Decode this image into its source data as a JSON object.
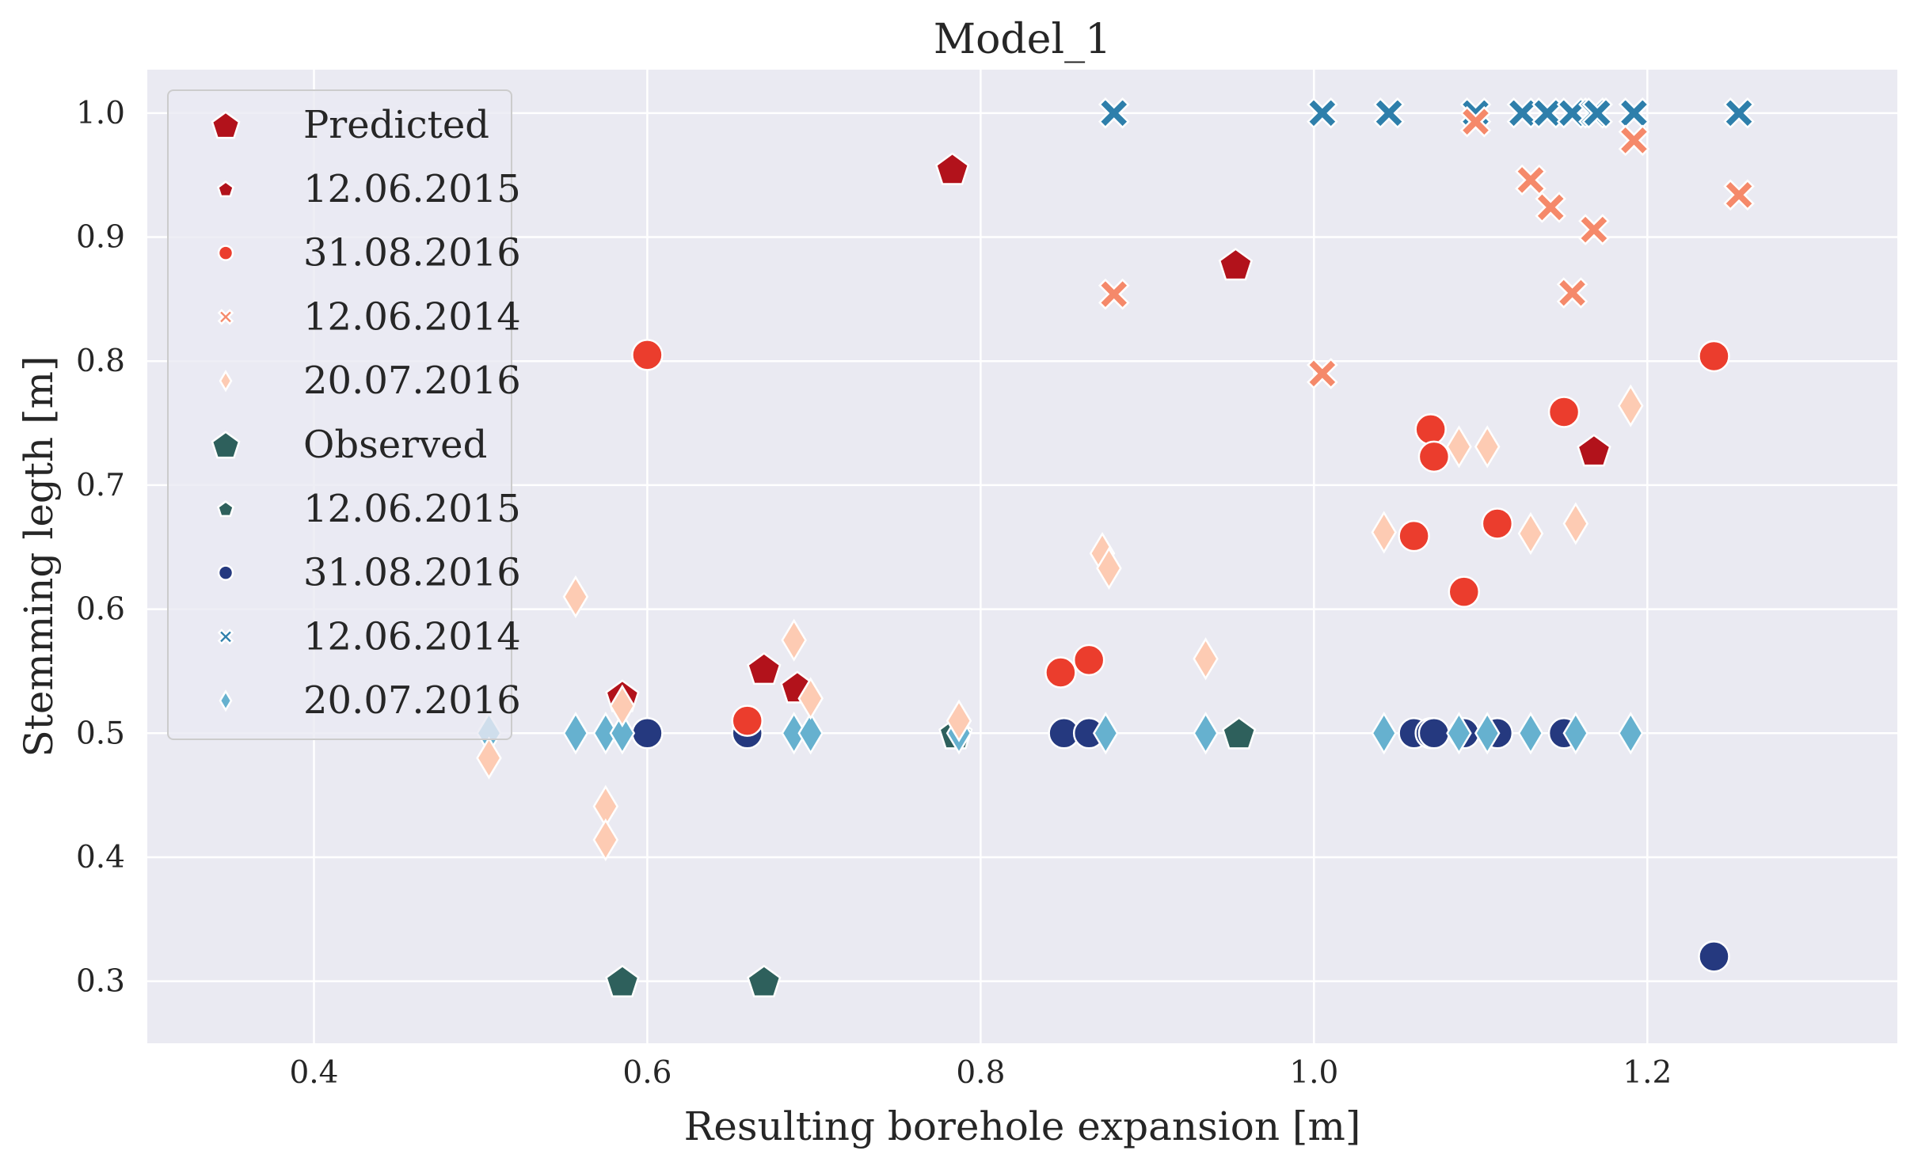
{
  "chart_data": {
    "type": "scatter",
    "title": "Model_1",
    "xlabel": "Resulting borehole expansion [m]",
    "ylabel": "Stemming legth [m]",
    "xlim": [
      0.3,
      1.35
    ],
    "ylim": [
      0.25,
      1.035
    ],
    "x_ticks": [
      0.4,
      0.6,
      0.8,
      1.0,
      1.2
    ],
    "y_ticks": [
      0.3,
      0.4,
      0.5,
      0.6,
      0.7,
      0.8,
      0.9,
      1.0
    ],
    "grid": true,
    "legend_position": "upper-left",
    "legend": [
      {
        "label": "Predicted",
        "marker": "pentagon",
        "color": "#b2121b",
        "kind": "group-title"
      },
      {
        "label": "12.06.2015",
        "marker": "pentagon",
        "color": "#b2121b",
        "kind": "series"
      },
      {
        "label": "31.08.2016",
        "marker": "circle",
        "color": "#eb3d2d",
        "kind": "series"
      },
      {
        "label": "12.06.2014",
        "marker": "x",
        "color": "#f5896a",
        "kind": "series"
      },
      {
        "label": "20.07.2016",
        "marker": "diamond",
        "color": "#fdcbb3",
        "kind": "series"
      },
      {
        "label": "Observed",
        "marker": "pentagon",
        "color": "#2e605c",
        "kind": "group-title"
      },
      {
        "label": "12.06.2015",
        "marker": "pentagon",
        "color": "#2e605c",
        "kind": "series"
      },
      {
        "label": "31.08.2016",
        "marker": "circle",
        "color": "#25397f",
        "kind": "series"
      },
      {
        "label": "12.06.2014",
        "marker": "x",
        "color": "#2e7fab",
        "kind": "series"
      },
      {
        "label": "20.07.2016",
        "marker": "diamond",
        "color": "#66b1cf",
        "kind": "series"
      }
    ],
    "series": [
      {
        "name": "Observed 12.06.2015",
        "marker": "pentagon",
        "color": "#2e605c",
        "x": [
          0.585,
          0.67,
          0.785,
          0.955
        ],
        "y": [
          0.3,
          0.3,
          0.5,
          0.5
        ]
      },
      {
        "name": "Observed 31.08.2016",
        "marker": "circle",
        "color": "#25397f",
        "x": [
          0.6,
          0.66,
          0.85,
          0.865,
          1.06,
          1.07,
          1.072,
          1.09,
          1.11,
          1.15,
          1.24
        ],
        "y": [
          0.5,
          0.5,
          0.5,
          0.5,
          0.5,
          0.5,
          0.5,
          0.5,
          0.5,
          0.5,
          0.32
        ]
      },
      {
        "name": "Observed 12.06.2014",
        "marker": "x",
        "color": "#2e7fab",
        "x": [
          0.88,
          1.005,
          1.045,
          1.097,
          1.125,
          1.14,
          1.155,
          1.168,
          1.17,
          1.192,
          1.255
        ],
        "y": [
          1.0,
          1.0,
          1.0,
          1.0,
          1.0,
          1.0,
          1.0,
          1.0,
          1.0,
          1.0,
          1.0
        ]
      },
      {
        "name": "Observed 20.07.2016",
        "marker": "diamond",
        "color": "#66b1cf",
        "x": [
          0.505,
          0.557,
          0.575,
          0.585,
          0.688,
          0.698,
          0.787,
          0.875,
          0.935,
          1.042,
          1.087,
          1.104,
          1.13,
          1.157,
          1.19
        ],
        "y": [
          0.5,
          0.5,
          0.5,
          0.5,
          0.5,
          0.5,
          0.5,
          0.5,
          0.5,
          0.5,
          0.5,
          0.5,
          0.5,
          0.5,
          0.5
        ]
      },
      {
        "name": "Predicted 12.06.2015",
        "marker": "pentagon",
        "color": "#b2121b",
        "x": [
          0.585,
          0.67,
          0.69,
          0.783,
          0.953,
          1.168
        ],
        "y": [
          0.53,
          0.552,
          0.537,
          0.955,
          0.878,
          0.728
        ]
      },
      {
        "name": "Predicted 31.08.2016",
        "marker": "circle",
        "color": "#eb3d2d",
        "x": [
          0.6,
          0.66,
          0.848,
          0.865,
          1.06,
          1.07,
          1.072,
          1.09,
          1.11,
          1.15,
          1.24
        ],
        "y": [
          0.805,
          0.51,
          0.549,
          0.559,
          0.659,
          0.745,
          0.723,
          0.614,
          0.669,
          0.759,
          0.804
        ]
      },
      {
        "name": "Predicted 12.06.2014",
        "marker": "x",
        "color": "#f5896a",
        "x": [
          0.88,
          1.005,
          1.097,
          1.13,
          1.142,
          1.155,
          1.168,
          1.192,
          1.255
        ],
        "y": [
          0.854,
          0.79,
          0.993,
          0.946,
          0.924,
          0.855,
          0.906,
          0.978,
          0.934
        ]
      },
      {
        "name": "Predicted 20.07.2016",
        "marker": "diamond",
        "color": "#fdcbb3",
        "x": [
          0.505,
          0.557,
          0.575,
          0.575,
          0.585,
          0.688,
          0.698,
          0.787,
          0.873,
          0.877,
          0.935,
          1.042,
          1.087,
          1.104,
          1.13,
          1.157,
          1.19
        ],
        "y": [
          0.48,
          0.61,
          0.441,
          0.414,
          0.522,
          0.575,
          0.528,
          0.51,
          0.645,
          0.633,
          0.56,
          0.662,
          0.731,
          0.731,
          0.661,
          0.669,
          0.764
        ]
      }
    ]
  }
}
